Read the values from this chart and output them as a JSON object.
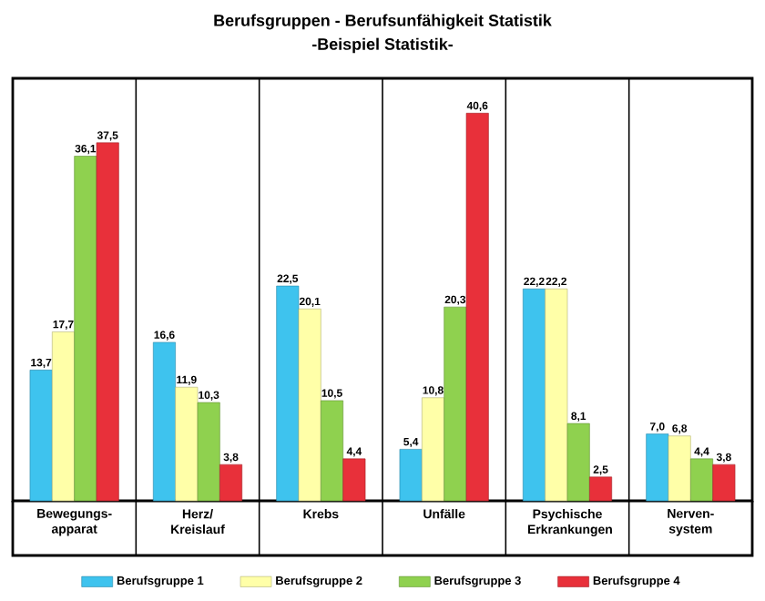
{
  "chart_data": {
    "type": "bar",
    "title": "Berufsgruppen - Berufsunfähigkeit Statistik",
    "subtitle": "-Beispiel Statistik-",
    "categories": [
      "Bewegungs-apparat",
      "Herz/ Kreislauf",
      "Krebs",
      "Unfälle",
      "Psychische Erkrankungen",
      "Nerven-system"
    ],
    "series": [
      {
        "name": "Berufsgruppe 1",
        "color": "#3ec3ee",
        "values": [
          13.7,
          16.6,
          22.5,
          5.4,
          22.2,
          7.0
        ],
        "value_labels": [
          "13,7",
          "16,6",
          "22,5",
          "5,4",
          "22,2",
          "7,0"
        ]
      },
      {
        "name": "Berufsgruppe 2",
        "color": "#ffffa8",
        "values": [
          17.7,
          11.9,
          20.1,
          10.8,
          22.2,
          6.8
        ],
        "value_labels": [
          "17,7",
          "11,9",
          "20,1",
          "10,8",
          "22,2",
          "6,8"
        ]
      },
      {
        "name": "Berufsgruppe 3",
        "color": "#8fd14f",
        "values": [
          36.1,
          10.3,
          10.5,
          20.3,
          8.1,
          4.4
        ],
        "value_labels": [
          "36,1",
          "10,3",
          "10,5",
          "20,3",
          "8,1",
          "4,4"
        ]
      },
      {
        "name": "Berufsgruppe 4",
        "color": "#e8303a",
        "values": [
          37.5,
          3.8,
          4.4,
          40.6,
          2.5,
          3.8
        ],
        "value_labels": [
          "37,5",
          "3,8",
          "4,4",
          "40,6",
          "2,5",
          "3,8"
        ]
      }
    ],
    "grid": "x",
    "legend": "bottom"
  }
}
